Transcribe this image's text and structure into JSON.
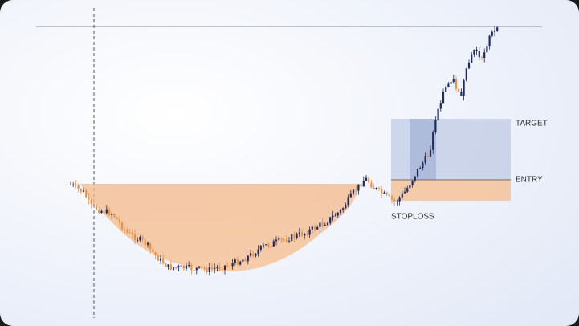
{
  "labels": {
    "target": "TARGET",
    "entry": "ENTRY",
    "stoploss": "STOPLOSS"
  }
}
